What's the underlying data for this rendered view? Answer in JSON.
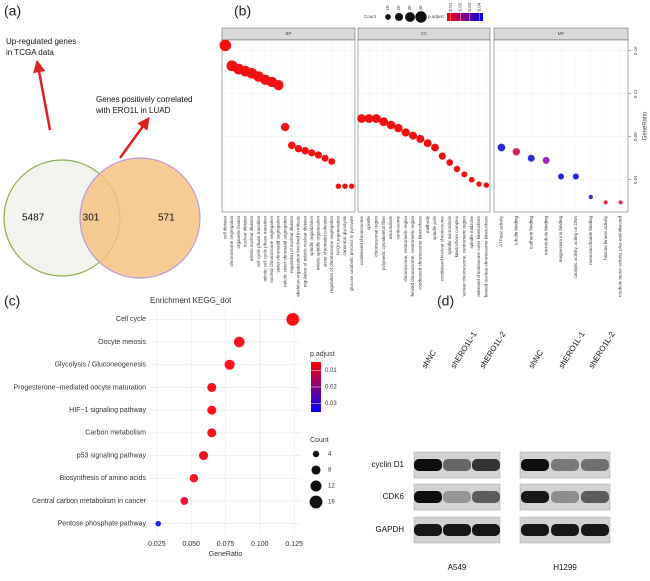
{
  "chart_data": [
    {
      "type": "venn",
      "panel_label": "(a)",
      "sets": [
        {
          "name_lines": [
            "Up-regulated genes",
            "in TCGA data"
          ],
          "value": 5487,
          "color": "#8ab04a"
        },
        {
          "name_lines": [
            "Genes positively correlated",
            "with ERO1L in LUAD"
          ],
          "value": 571,
          "color": "#b89ad8"
        }
      ],
      "intersection": 301
    },
    {
      "type": "faceted_dot",
      "panel_label": "(b)",
      "y_label": "GeneRatio",
      "ylim": [
        0.01,
        0.17
      ],
      "yticks": [
        0.04,
        0.08,
        0.12,
        0.16
      ],
      "grid": true,
      "size_legend": {
        "title": "Count",
        "values": [
          10,
          20,
          30,
          40
        ]
      },
      "color_legend": {
        "title": "p.adjust",
        "ticks": [
          0.01,
          0.02,
          0.03,
          0.04
        ],
        "lim": [
          0.006,
          0.044
        ],
        "colors": [
          "#ff0000",
          "#0000ff"
        ]
      },
      "facets": [
        {
          "name": "BP",
          "categories": [
            "cell division",
            "chromosome segregation",
            "organelle fission",
            "nuclear division",
            "mitotic nuclear division",
            "cell cycle phase transition",
            "mitotic cell cycle phase transition",
            "nuclear chromosome segregation",
            "sister chromatid segregation",
            "mitotic sister chromatid segregation",
            "regulation of nuclear division",
            "microtubule cytoskeleton organization involved in mitosis",
            "regulation of mitotic nuclear division",
            "spindle organization",
            "mitotic spindle organization",
            "sister chromatid cohesion",
            "regulation of chromosome segregation",
            "NADH regeneration",
            "canonical glycolysis",
            "glucose catabolic process to pyruvate"
          ],
          "values": [
            0.165,
            0.146,
            0.143,
            0.141,
            0.139,
            0.136,
            0.133,
            0.131,
            0.128,
            0.089,
            0.072,
            0.069,
            0.067,
            0.065,
            0.063,
            0.06,
            0.057,
            0.034,
            0.034,
            0.034
          ],
          "counts": [
            41,
            37,
            36,
            35,
            35,
            34,
            33,
            33,
            32,
            22,
            18,
            17,
            17,
            16,
            16,
            15,
            14,
            9,
            9,
            9
          ],
          "colors": [
            "#f01010",
            "#f01010",
            "#f01010",
            "#f01010",
            "#f01010",
            "#f01010",
            "#f01010",
            "#f01010",
            "#f01010",
            "#f01010",
            "#f01010",
            "#f01010",
            "#f01010",
            "#f01010",
            "#f01010",
            "#f01010",
            "#f01010",
            "#f01010",
            "#f01010",
            "#f01010"
          ]
        },
        {
          "name": "CC",
          "categories": [
            "condensed chromosome",
            "spindle",
            "chromosomal region",
            "polymeric cytoskeletal fiber",
            "microtubule",
            "centrosome",
            "chromosome, centromeric region",
            "condensed chromosome, centromeric region",
            "condensed chromosome kinetochore",
            "midbody",
            "spindle pole",
            "condensed nuclear chromosome",
            "spindle microtubule",
            "kinetochore complex",
            "condensed nuclear chromosome, centromeric region",
            "spindle midzone",
            "condensed chromosome outer kinetochore",
            "condensed nuclear chromosome kinetochore"
          ],
          "values": [
            0.097,
            0.097,
            0.097,
            0.094,
            0.091,
            0.088,
            0.084,
            0.081,
            0.078,
            0.074,
            0.07,
            0.062,
            0.056,
            0.05,
            0.045,
            0.04,
            0.036,
            0.035
          ],
          "counts": [
            24,
            24,
            24,
            24,
            23,
            22,
            21,
            20,
            20,
            19,
            18,
            16,
            14,
            13,
            11,
            10,
            9,
            9
          ],
          "colors": [
            "#f01010",
            "#f01010",
            "#f01010",
            "#f01010",
            "#f01010",
            "#f01010",
            "#f01010",
            "#f01010",
            "#f01010",
            "#f01010",
            "#f01010",
            "#f01010",
            "#f01010",
            "#f01010",
            "#f01010",
            "#f01010",
            "#f01010",
            "#f01010"
          ]
        },
        {
          "name": "MF",
          "categories": [
            "ATPase activity",
            "tubulin binding",
            "cadherin binding",
            "microtubule binding",
            "magnesium ion binding",
            "catalytic activity, acting on DNA",
            "monosaccharide binding",
            "histone kinase activity",
            "TP-dependent microtubule motor activity, plus-end-directed"
          ],
          "values": [
            0.07,
            0.066,
            0.06,
            0.058,
            0.043,
            0.043,
            0.024,
            0.019,
            0.019
          ],
          "counts": [
            18,
            17,
            15,
            15,
            11,
            11,
            6,
            5,
            5
          ],
          "colors": [
            "#2b2bd8",
            "#d81f5a",
            "#2b2bd8",
            "#9a2ab8",
            "#2222e8",
            "#2222e8",
            "#3333d0",
            "#e8203a",
            "#e8203a"
          ]
        }
      ]
    },
    {
      "type": "dot",
      "panel_label": "(c)",
      "title": "Enrichment KEGG_dot",
      "x_label": "GeneRatio",
      "xlim": [
        0.02,
        0.13
      ],
      "xticks": [
        0.025,
        {
          "value": 0.05,
          "label": "0.050"
        },
        0.075,
        {
          "value": 0.1,
          "label": "0.100"
        },
        0.125
      ],
      "grid": true,
      "categories": [
        "Cell cycle",
        "Oocyte meiosis",
        "Glycolysis / Gluconeogenesis",
        "Progesterone−mediated oocyte maturation",
        "HIF−1 signaling pathway",
        "Carbon metabolism",
        "p53 signaling pathway",
        "Biosynthesis of amino acids",
        "Central carbon metabolism in cancer",
        "Pentose phosphate pathway"
      ],
      "values": [
        0.124,
        0.085,
        0.078,
        0.065,
        0.065,
        0.065,
        0.059,
        0.052,
        0.045,
        0.026
      ],
      "counts": [
        16,
        11,
        10,
        8,
        8,
        8,
        8,
        7,
        6,
        3
      ],
      "colors": [
        "#ff1010",
        "#ff1020",
        "#ff1020",
        "#ff1020",
        "#ff1020",
        "#ff1020",
        "#ff1020",
        "#ff1020",
        "#ff1030",
        "#2020f0"
      ],
      "size_legend": {
        "title": "Count",
        "values": [
          4,
          8,
          12,
          16
        ]
      },
      "color_legend": {
        "title": "p.adjust",
        "ticks": [
          0.01,
          0.02,
          0.03
        ],
        "lim": [
          0.005,
          0.035
        ],
        "colors": [
          "#ff0000",
          "#0000ff"
        ]
      }
    },
    {
      "type": "western_blot",
      "panel_label": "(d)",
      "lanes": [
        "shNC",
        "shERO1L-1",
        "shERO1L-2"
      ],
      "proteins": [
        "cyclin D1",
        "CDK6",
        "GAPDH"
      ],
      "cell_lines": [
        "A549",
        "H1299"
      ]
    }
  ]
}
